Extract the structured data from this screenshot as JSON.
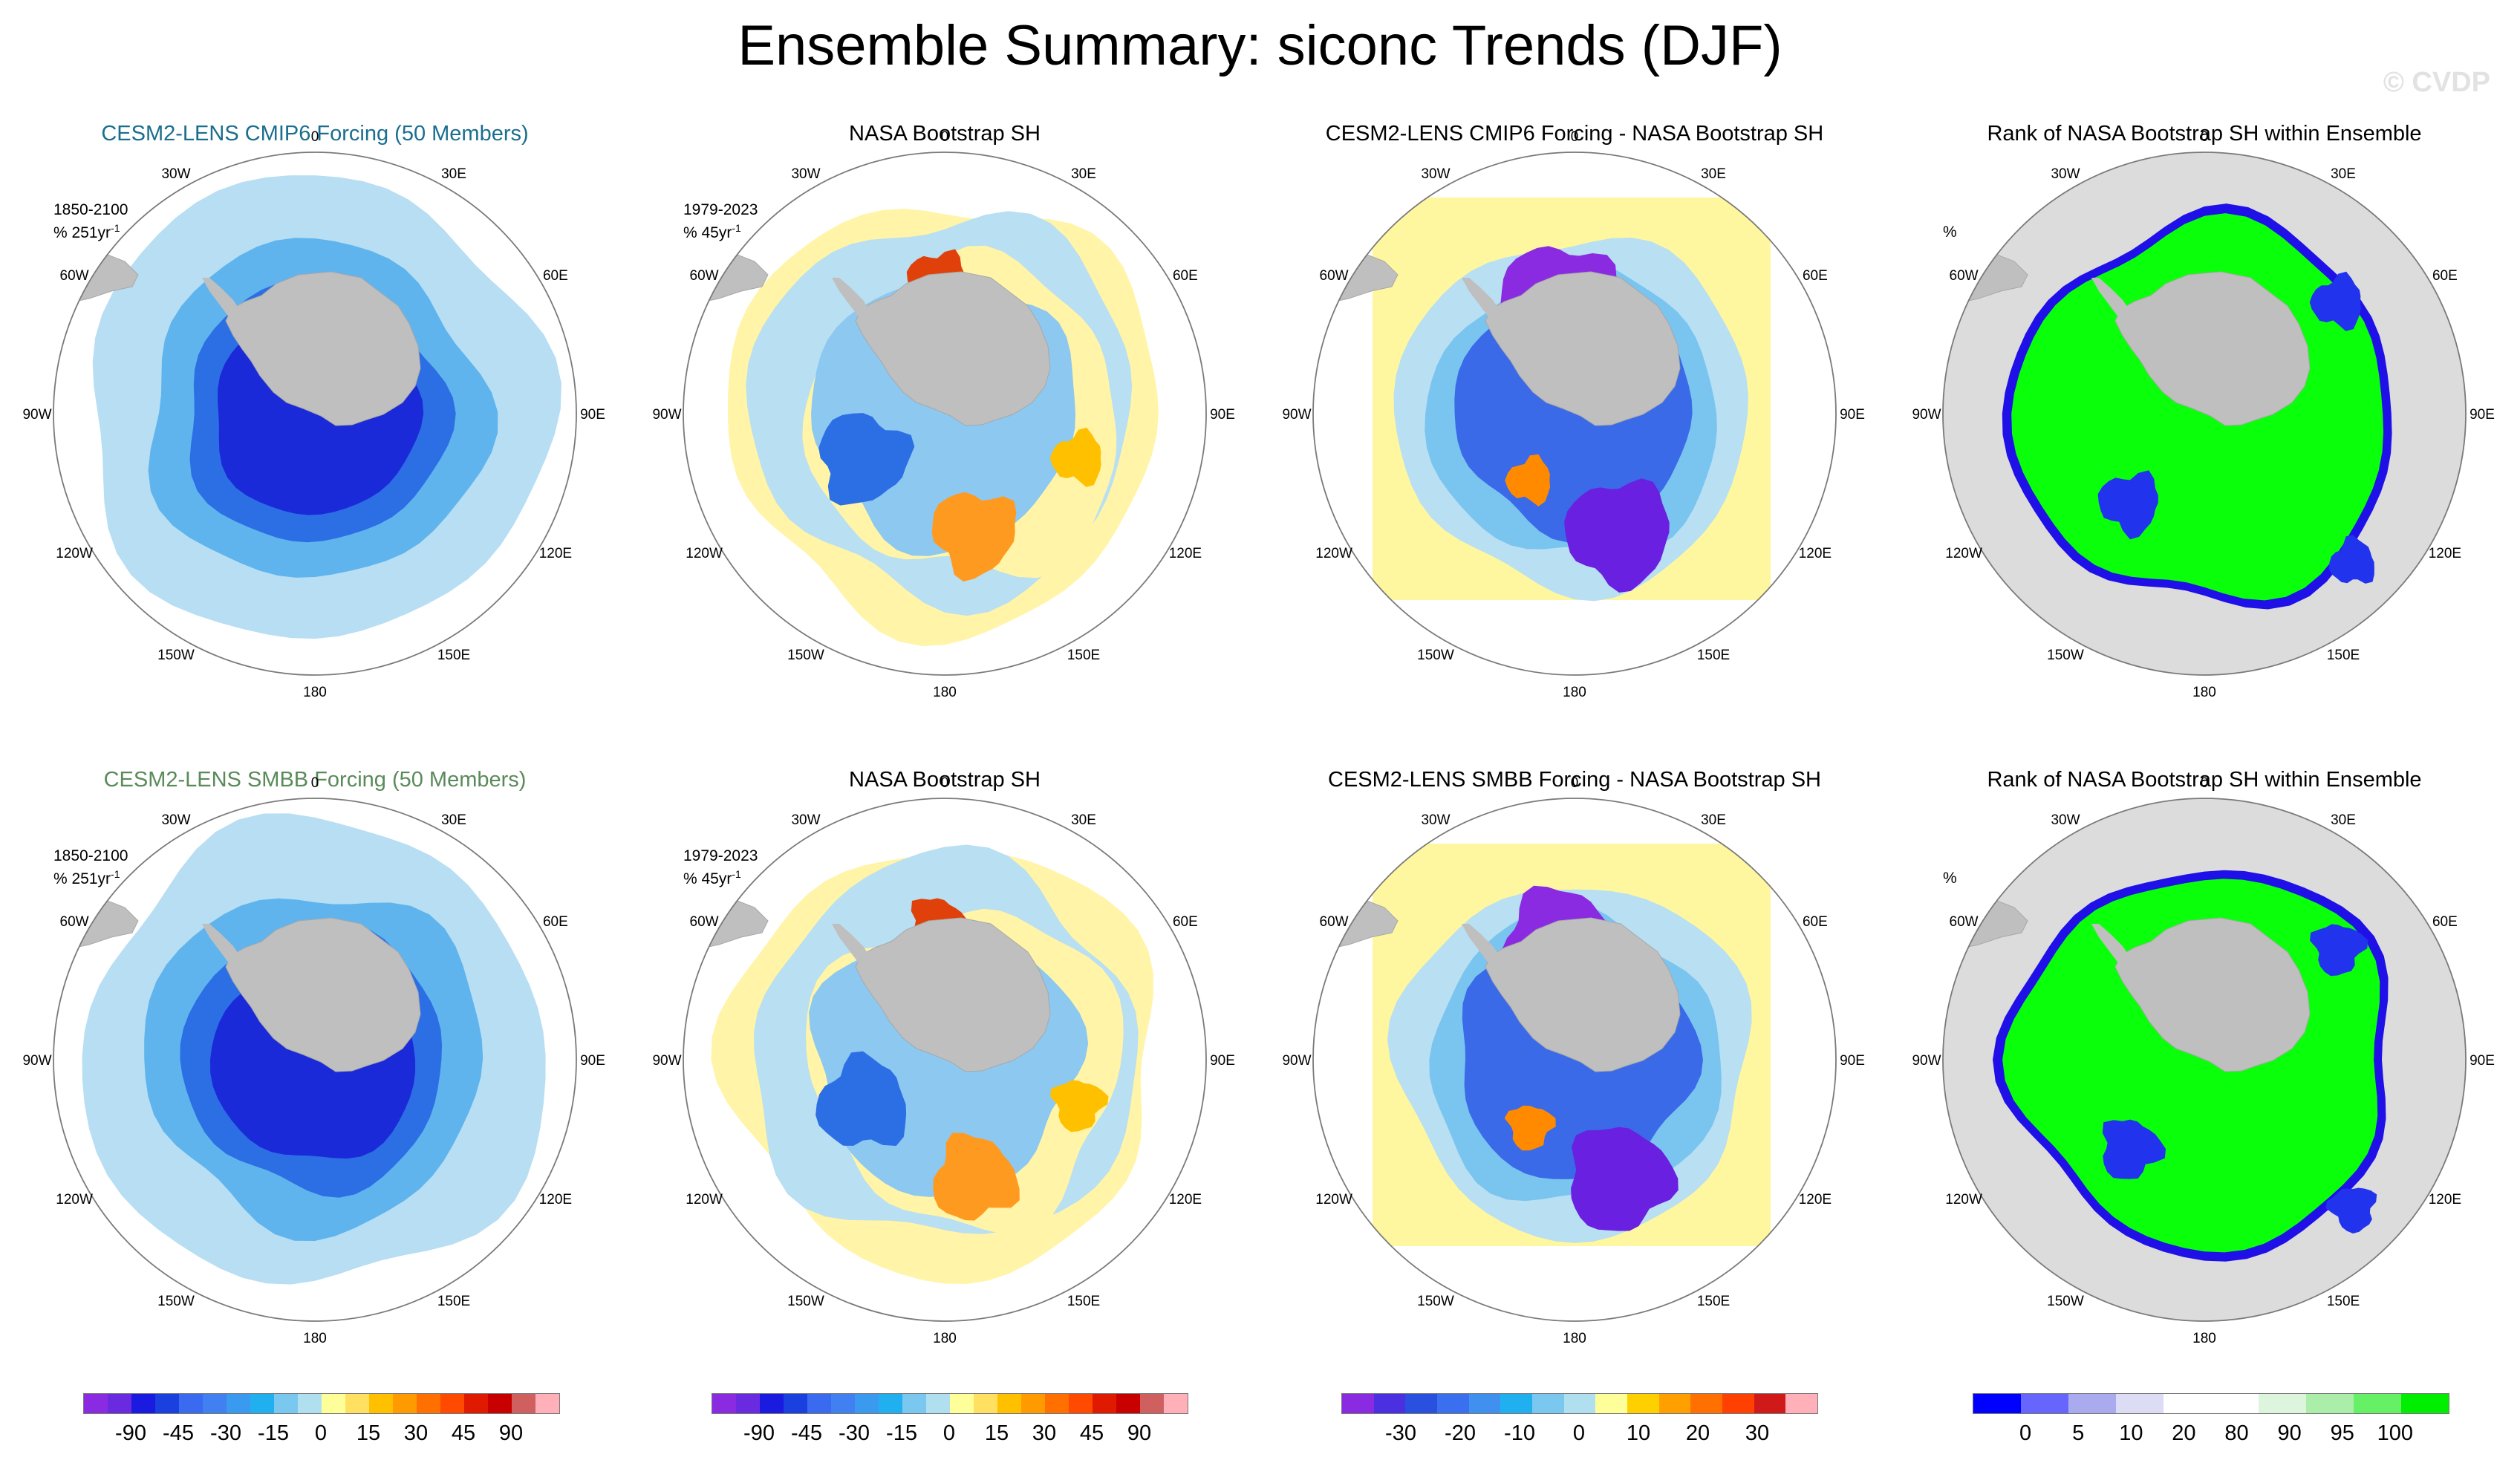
{
  "figure": {
    "title": "Ensemble Summary: siconc Trends (DJF)",
    "watermark": "© CVDP"
  },
  "lon_labels": [
    "0",
    "30E",
    "60E",
    "90E",
    "120E",
    "150E",
    "180",
    "150W",
    "120W",
    "90W",
    "60W",
    "30W"
  ],
  "panels": [
    {
      "title": "CESM2-LENS CMIP6 Forcing (50 Members)",
      "title_color": "#1a6e8e",
      "annot_line1": "1850-2100",
      "annot_line2": "% 251yr",
      "annot_sup": "-1",
      "kind": "model"
    },
    {
      "title": "NASA Bootstrap SH",
      "title_color": "#000000",
      "annot_line1": "1979-2023",
      "annot_line2": "% 45yr",
      "annot_sup": "-1",
      "kind": "obs"
    },
    {
      "title": "CESM2-LENS CMIP6 Forcing - NASA Bootstrap SH",
      "title_color": "#000000",
      "annot_line1": "",
      "annot_line2": "",
      "annot_sup": "",
      "kind": "diff"
    },
    {
      "title": "Rank of NASA Bootstrap SH within Ensemble",
      "title_color": "#000000",
      "annot_line1": "%",
      "annot_line2": "",
      "annot_sup": "",
      "kind": "rank"
    },
    {
      "title": "CESM2-LENS SMBB Forcing (50 Members)",
      "title_color": "#5a8a5a",
      "annot_line1": "1850-2100",
      "annot_line2": "% 251yr",
      "annot_sup": "-1",
      "kind": "model"
    },
    {
      "title": "NASA Bootstrap SH",
      "title_color": "#000000",
      "annot_line1": "1979-2023",
      "annot_line2": "% 45yr",
      "annot_sup": "-1",
      "kind": "obs"
    },
    {
      "title": "CESM2-LENS SMBB Forcing - NASA Bootstrap SH",
      "title_color": "#000000",
      "annot_line1": "",
      "annot_line2": "",
      "annot_sup": "",
      "kind": "diff"
    },
    {
      "title": "Rank of NASA Bootstrap SH within Ensemble",
      "title_color": "#000000",
      "annot_line1": "%",
      "annot_line2": "",
      "annot_sup": "",
      "kind": "rank"
    }
  ],
  "colorbars": [
    {
      "colors": [
        "#8a2be2",
        "#6a2be0",
        "#1a1ae0",
        "#1a40e0",
        "#3a6af0",
        "#4080f0",
        "#3a9af0",
        "#20b0f0",
        "#7ac8f0",
        "#b0e0f0",
        "#ffff9a",
        "#ffe060",
        "#ffc000",
        "#ff9a00",
        "#ff7000",
        "#ff4a00",
        "#e01a00",
        "#c80000",
        "#d06060",
        "#ffb0b8"
      ],
      "labels": [
        "-90",
        "-45",
        "-30",
        "-15",
        "0",
        "15",
        "30",
        "45",
        "90"
      ]
    },
    {
      "colors": [
        "#8a2be2",
        "#6a2be0",
        "#1a1ae0",
        "#1a40e0",
        "#3a6af0",
        "#4080f0",
        "#3a9af0",
        "#20b0f0",
        "#7ac8f0",
        "#b0e0f0",
        "#ffff9a",
        "#ffe060",
        "#ffc000",
        "#ff9a00",
        "#ff7000",
        "#ff4a00",
        "#e01a00",
        "#c80000",
        "#d06060",
        "#ffb0b8"
      ],
      "labels": [
        "-90",
        "-45",
        "-30",
        "-15",
        "0",
        "15",
        "30",
        "45",
        "90"
      ]
    },
    {
      "colors": [
        "#8a2be2",
        "#4a30e0",
        "#2a50e0",
        "#3a70f0",
        "#4090f0",
        "#20b0f0",
        "#7ac8f0",
        "#b0e0f0",
        "#ffff9a",
        "#ffd000",
        "#ffa000",
        "#ff7000",
        "#ff4000",
        "#d01a1a",
        "#ffb0b8"
      ],
      "labels": [
        "-30",
        "-20",
        "-10",
        "0",
        "10",
        "20",
        "30"
      ]
    },
    {
      "colors": [
        "#0000ff",
        "#6666ff",
        "#aaaaee",
        "#dcdcf5",
        "#ffffff",
        "#ffffff",
        "#dcf5dc",
        "#aaeeaa",
        "#66f066",
        "#00ee00"
      ],
      "labels": [
        "0",
        "5",
        "10",
        "20",
        "80",
        "90",
        "95",
        "100"
      ]
    }
  ]
}
